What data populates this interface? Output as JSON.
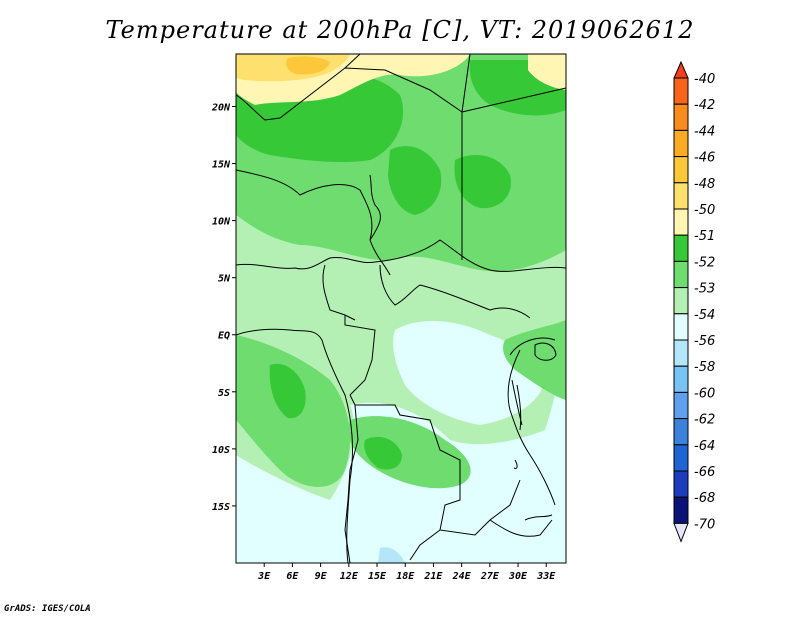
{
  "title": "Temperature at 200hPa [C], VT: 2019062612",
  "credit": "GrADS: IGES/COLA",
  "lat_ticks": [
    {
      "label": "20N",
      "value": 20
    },
    {
      "label": "15N",
      "value": 15
    },
    {
      "label": "10N",
      "value": 10
    },
    {
      "label": "5N",
      "value": 5
    },
    {
      "label": "EQ",
      "value": 0
    },
    {
      "label": "5S",
      "value": -5
    },
    {
      "label": "10S",
      "value": -10
    },
    {
      "label": "15S",
      "value": -15
    }
  ],
  "lon_ticks": [
    {
      "label": "3E",
      "value": 3
    },
    {
      "label": "6E",
      "value": 6
    },
    {
      "label": "9E",
      "value": 9
    },
    {
      "label": "12E",
      "value": 12
    },
    {
      "label": "15E",
      "value": 15
    },
    {
      "label": "18E",
      "value": 18
    },
    {
      "label": "21E",
      "value": 21
    },
    {
      "label": "24E",
      "value": 24
    },
    {
      "label": "27E",
      "value": 27
    },
    {
      "label": "30E",
      "value": 30
    },
    {
      "label": "33E",
      "value": 33
    }
  ],
  "colorbar": [
    {
      "label": "-40",
      "color": "#f23c1e"
    },
    {
      "label": "-42",
      "color": "#f6641e"
    },
    {
      "label": "-44",
      "color": "#f98c1e"
    },
    {
      "label": "-46",
      "color": "#fbaa23"
    },
    {
      "label": "-48",
      "color": "#fcc83a"
    },
    {
      "label": "-50",
      "color": "#fde06e"
    },
    {
      "label": "-51",
      "color": "#fff6b4"
    },
    {
      "label": "-52",
      "color": "#37c837"
    },
    {
      "label": "-53",
      "color": "#6edc6e"
    },
    {
      "label": "-54",
      "color": "#b4f0b4"
    },
    {
      "label": "-56",
      "color": "#e0fffe"
    },
    {
      "label": "-58",
      "color": "#b4e6fa"
    },
    {
      "label": "-60",
      "color": "#78c2f5"
    },
    {
      "label": "-62",
      "color": "#5ea0ec"
    },
    {
      "label": "-64",
      "color": "#3c82dc"
    },
    {
      "label": "-66",
      "color": "#1e64d2"
    },
    {
      "label": "-68",
      "color": "#1e3cbe"
    },
    {
      "label": "-70",
      "color": "#0a1478"
    }
  ],
  "colorbar_low_color": "#e6e6fa"
}
